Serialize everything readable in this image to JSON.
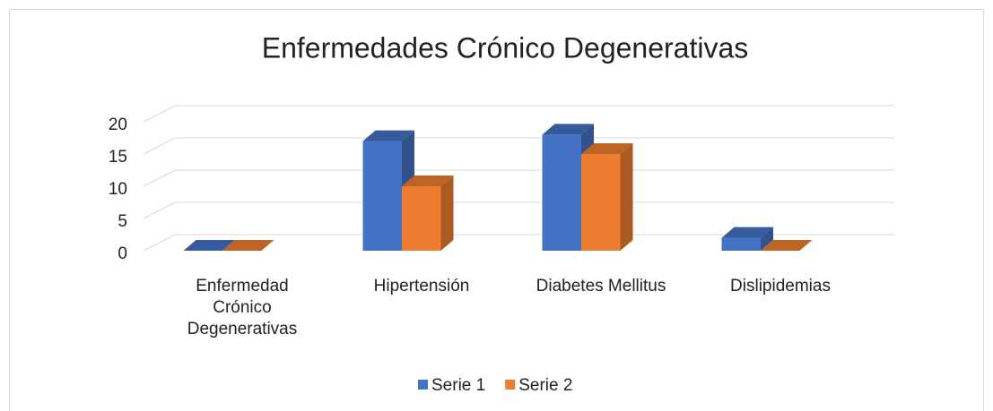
{
  "chart_data": {
    "type": "bar3d",
    "title": "Enfermedades Crónico Degenerativas",
    "categories": [
      "Enfermedad Crónico Degenerativas",
      "Hipertensión",
      "Diabetes Mellitus",
      "Dislipidemias"
    ],
    "series": [
      {
        "name": "Serie 1",
        "color": "#4472c4",
        "values": [
          0,
          17,
          18,
          2
        ]
      },
      {
        "name": "Serie 2",
        "color": "#ed7d31",
        "values": [
          0,
          10,
          15,
          0
        ]
      }
    ],
    "ylim": [
      0,
      20
    ],
    "yticks": [
      0,
      5,
      10,
      15,
      20
    ],
    "grid": true,
    "legend": "bottom"
  }
}
